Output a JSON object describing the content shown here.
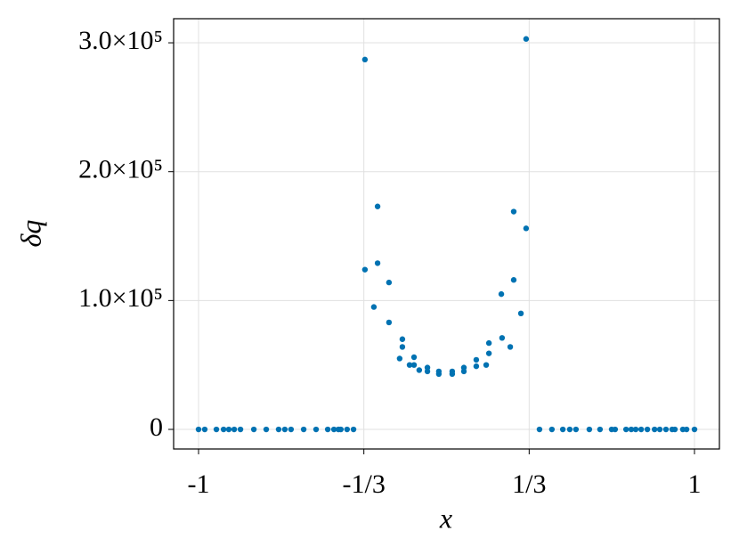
{
  "chart_data": {
    "type": "scatter",
    "x_label": "x",
    "y_label": "δq",
    "color": "#0072b2",
    "grid": true,
    "xlim": [
      -1.1005,
      1.1005
    ],
    "ylim": [
      -15200,
      318700
    ],
    "xticks": [
      {
        "value": -1,
        "label": "-1"
      },
      {
        "value": -0.3333,
        "label": "-1/3"
      },
      {
        "value": 0.3333,
        "label": "1/3"
      },
      {
        "value": 1,
        "label": "1"
      }
    ],
    "yticks": [
      0,
      {
        "value": 100000,
        "label": "1.0×10⁵"
      },
      {
        "value": 200000,
        "label": "2.0×10⁵"
      },
      {
        "value": 300000,
        "label": "3.0×10⁵"
      }
    ],
    "x": [
      -1.0,
      -0.975,
      -0.928,
      -0.899,
      -0.878,
      -0.856,
      -0.831,
      -0.777,
      -0.727,
      -0.677,
      -0.652,
      -0.627,
      -0.576,
      -0.526,
      -0.479,
      -0.454,
      -0.436,
      -0.426,
      -0.401,
      -0.375,
      -0.329,
      -0.329,
      -0.293,
      -0.278,
      -0.278,
      -0.232,
      -0.232,
      -0.189,
      -0.178,
      -0.178,
      -0.149,
      -0.131,
      -0.131,
      -0.11,
      -0.077,
      -0.077,
      -0.031,
      -0.031,
      0.023,
      0.023,
      0.07,
      0.07,
      0.12,
      0.12,
      0.16,
      0.171,
      0.171,
      0.221,
      0.224,
      0.257,
      0.271,
      0.271,
      0.3,
      0.321,
      0.321,
      0.375,
      0.425,
      0.469,
      0.497,
      0.522,
      0.576,
      0.619,
      0.666,
      0.68,
      0.724,
      0.745,
      0.763,
      0.785,
      0.81,
      0.839,
      0.86,
      0.885,
      0.91,
      0.921,
      0.953,
      0.968,
      1.0
    ],
    "values": [
      0,
      0,
      0,
      0,
      0,
      0,
      0,
      0,
      0,
      0,
      0,
      0,
      0,
      0,
      0,
      0,
      0,
      0,
      0,
      0,
      287000,
      124000,
      95000,
      173000,
      129000,
      114000,
      83000,
      55000,
      70000,
      64000,
      50000,
      56000,
      50000,
      46000,
      48000,
      45000,
      45000,
      43000,
      45000,
      43000,
      48000,
      45000,
      49000,
      54000,
      50000,
      59000,
      67000,
      105000,
      71000,
      64000,
      116000,
      169000,
      90000,
      156000,
      303000,
      0,
      0,
      0,
      0,
      0,
      0,
      0,
      0,
      0,
      0,
      0,
      0,
      0,
      0,
      0,
      0,
      0,
      0,
      0,
      0,
      0,
      0
    ]
  }
}
